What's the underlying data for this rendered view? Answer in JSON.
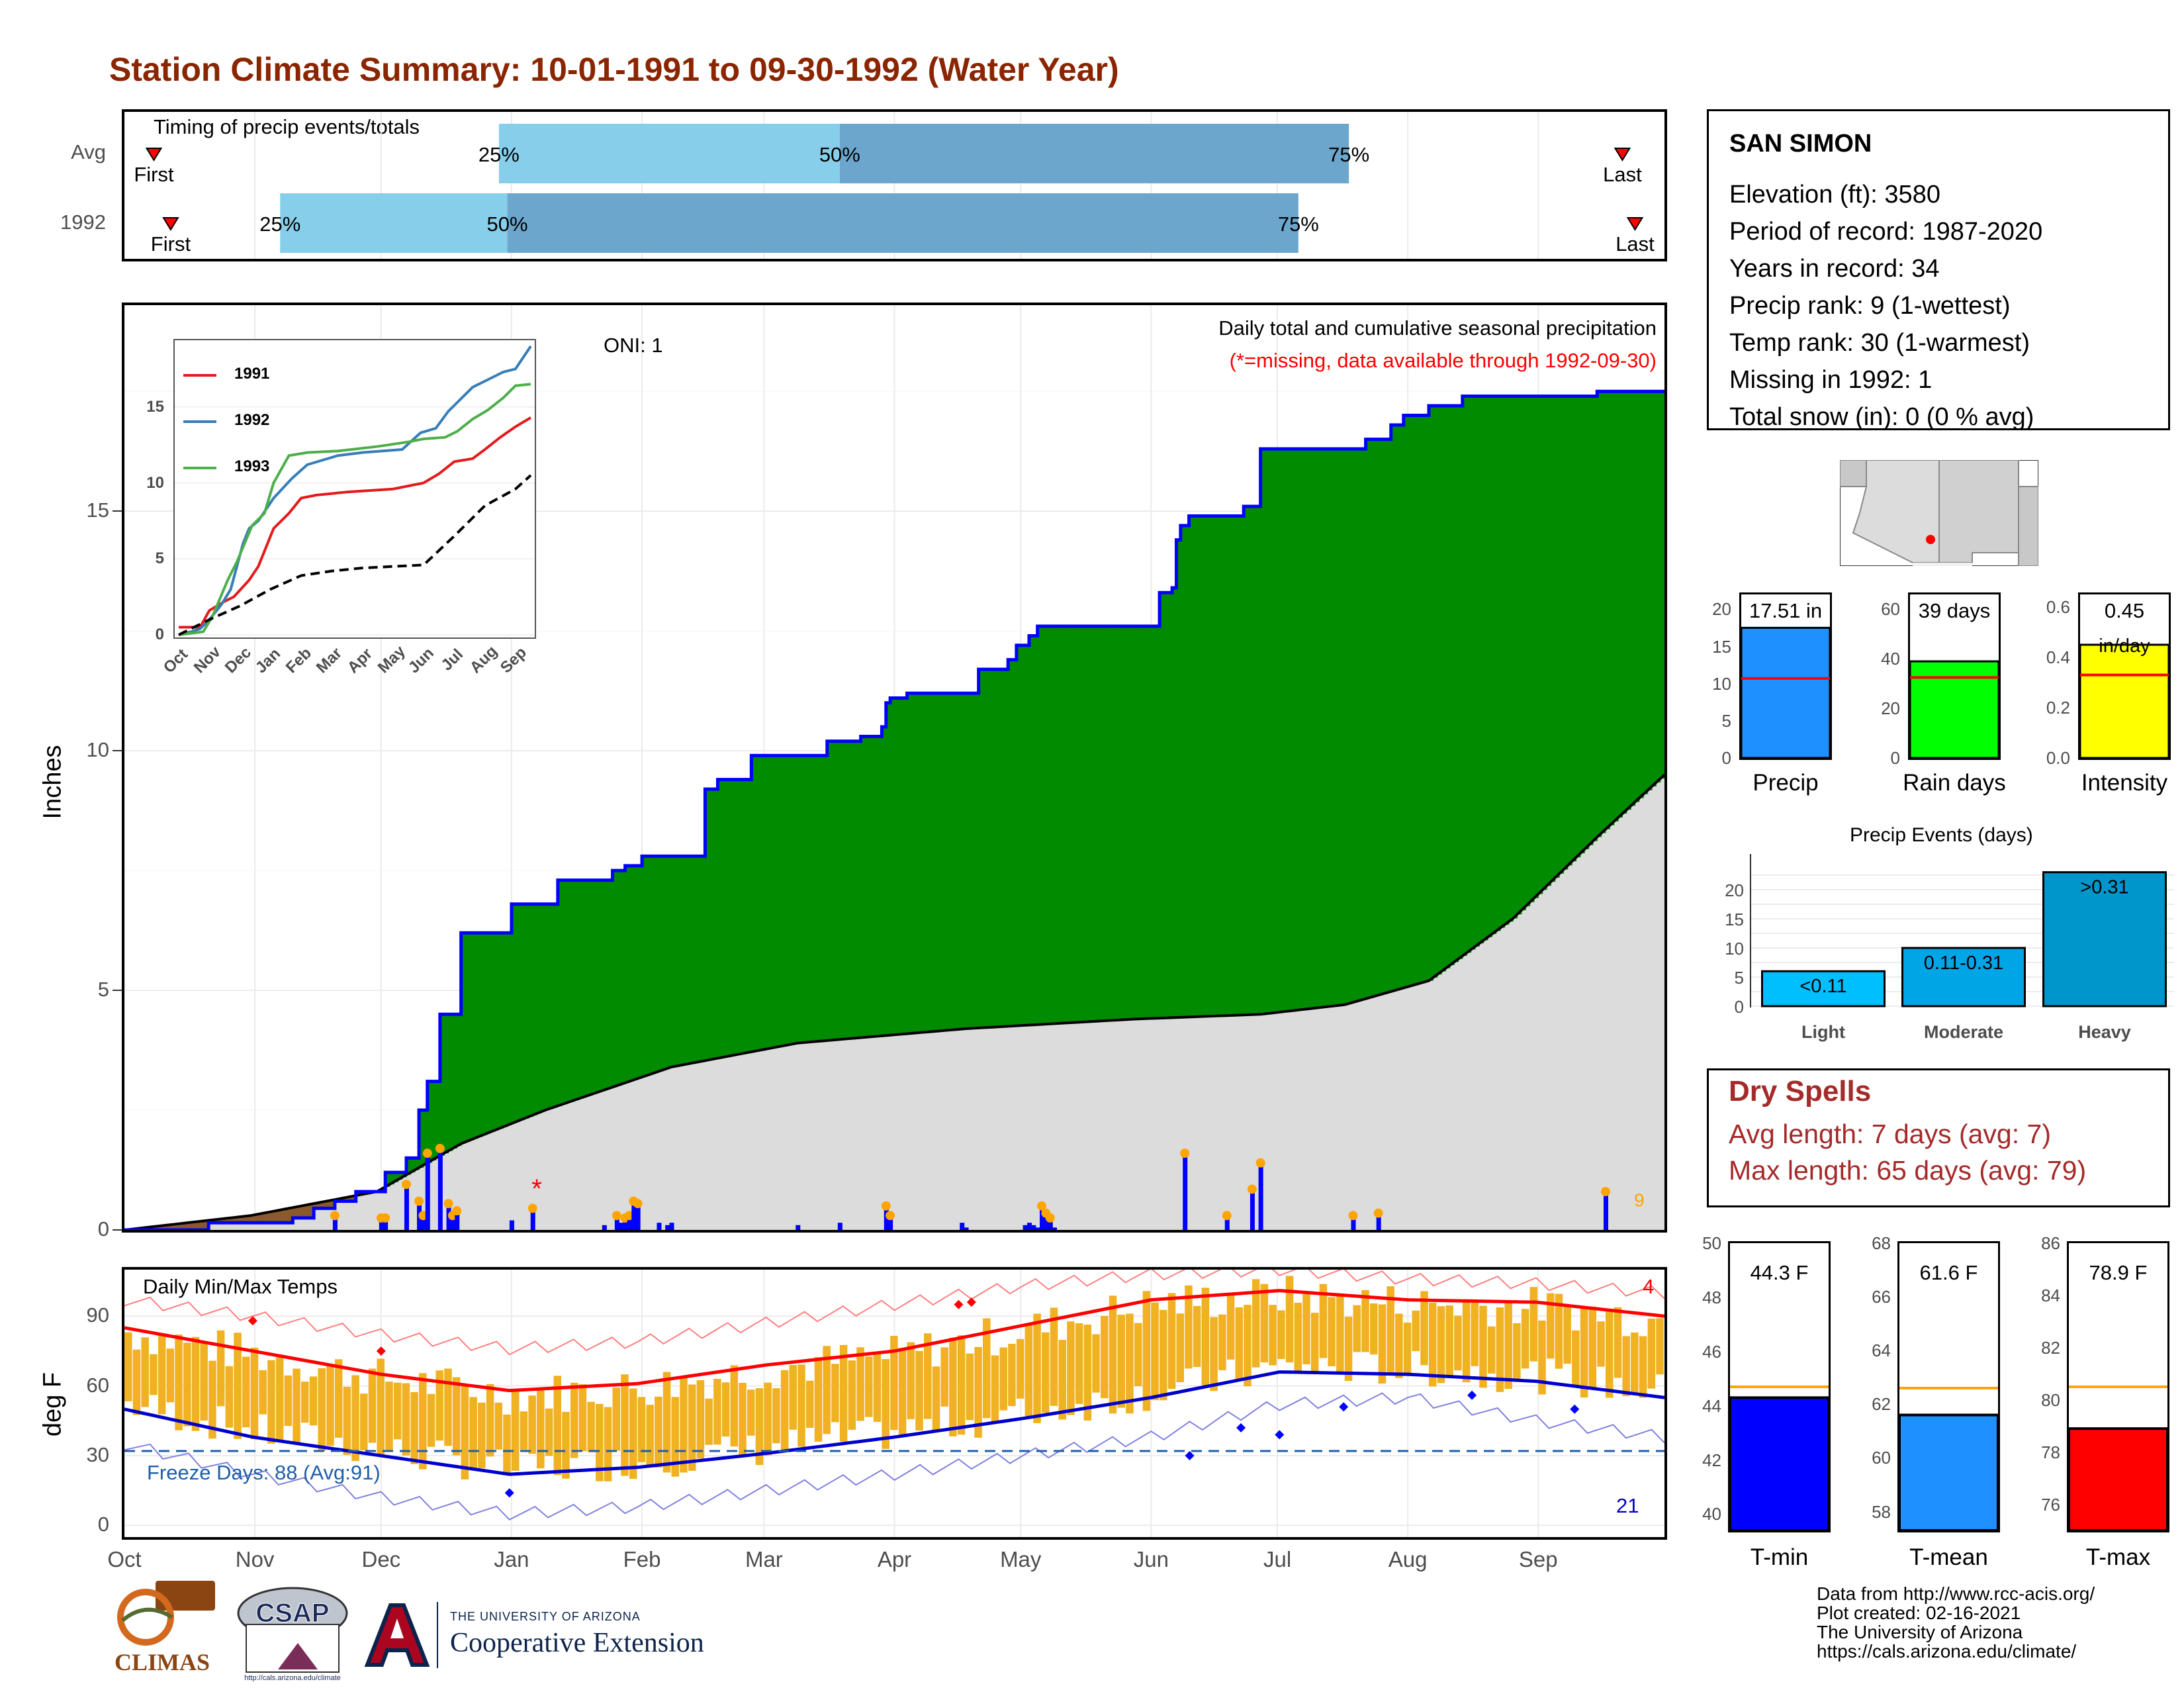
{
  "page": {
    "title": "Station Climate Summary: 10-01-1991 to 09-30-1992 (Water Year)",
    "title_color": "#8B2500"
  },
  "timing": {
    "label": "Timing of precip events/totals",
    "rows": [
      {
        "name": "Avg",
        "first_label": "First",
        "last_label": "Last",
        "first": "Oct 8",
        "p25": "Dec 29",
        "p50": "Mar 19",
        "p75": "Jul 18",
        "last": "Sep 21"
      },
      {
        "name": "1992",
        "first_label": "First",
        "last_label": "Last",
        "first": "Oct 12",
        "p25": "Nov 7",
        "p50": "Dec 31",
        "p75": "Jul 6",
        "last": "Sep 24"
      }
    ],
    "pct_labels": [
      "25%",
      "50%",
      "75%"
    ],
    "colors": {
      "light": "#87CEEB",
      "dark": "#6CA6CD",
      "marker": "#FF0000"
    }
  },
  "precip_panel": {
    "title": "Daily total and cumulative seasonal precipitation",
    "note": "(*=missing, data available through 1992-09-30)",
    "oni": "ONI: 1",
    "ylabel": "Inches",
    "yticks": [
      "0",
      "5",
      "10",
      "15"
    ],
    "missing_marker": "*",
    "end_label": "9",
    "colors": {
      "above": "#008B00",
      "below": "#8B5A2B",
      "normal": "#DCDCDC",
      "line": "#0000FF",
      "bar": "#0000FF",
      "dot": "#FFA500",
      "note": "#FF0000"
    }
  },
  "inset": {
    "series": [
      {
        "name": "1991",
        "color": "#E41A1C"
      },
      {
        "name": "1992",
        "color": "#377EB8"
      },
      {
        "name": "1993",
        "color": "#4DAF4A"
      }
    ],
    "xticks": [
      "Oct",
      "Nov",
      "Dec",
      "Jan",
      "Feb",
      "Mar",
      "Apr",
      "May",
      "Jun",
      "Jul",
      "Aug",
      "Sep"
    ],
    "yticks": [
      "0",
      "5",
      "10",
      "15"
    ]
  },
  "temp_panel": {
    "title": "Daily Min/Max Temps",
    "ylabel": "deg F",
    "yticks": [
      "0",
      "30",
      "60",
      "90"
    ],
    "freeze_label": "Freeze Days: 88 (Avg:91)",
    "record_high_count": "4",
    "record_low_count": "21",
    "colors": {
      "bar": "#F0B122",
      "max": "#FF0000",
      "min": "#0000CD",
      "freeze": "#1E5FA8"
    }
  },
  "months": [
    "Oct",
    "Nov",
    "Dec",
    "Jan",
    "Feb",
    "Mar",
    "Apr",
    "May",
    "Jun",
    "Jul",
    "Aug",
    "Sep"
  ],
  "station": {
    "name": "SAN SIMON",
    "lines": [
      "Elevation (ft): 3580",
      "Period of record: 1987-2020",
      "Years in record: 34",
      "Precip rank: 9 (1-wettest)",
      "Temp rank: 30 (1-warmest)",
      "Missing in 1992: 1",
      "Total snow (in): 0 (0 % avg)"
    ]
  },
  "summary_bars": [
    {
      "label": "Precip",
      "value_label": "17.51 in",
      "value": 17.51,
      "avg": 10.7,
      "ymax": 22,
      "yticks": [
        "0",
        "5",
        "10",
        "15",
        "20"
      ],
      "color": "#1E90FF"
    },
    {
      "label": "Rain days",
      "value_label": "39 days",
      "value": 39,
      "avg": 32.5,
      "ymax": 66,
      "yticks": [
        "0",
        "20",
        "40",
        "60"
      ],
      "color": "#00FF00"
    },
    {
      "label": "Intensity",
      "value_label": "0.45",
      "value_unit": "in/day",
      "value": 0.45,
      "avg": 0.33,
      "ymax": 0.65,
      "yticks": [
        "0.0",
        "0.2",
        "0.4",
        "0.6"
      ],
      "color": "#FFFF00"
    }
  ],
  "precip_events": {
    "title": "Precip Events (days)",
    "yticks": [
      "0",
      "5",
      "10",
      "15",
      "20"
    ],
    "bars": [
      {
        "category": "Light",
        "label": "<0.11",
        "value": 6,
        "color": "#00BFFF"
      },
      {
        "category": "Moderate",
        "label": "0.11-0.31",
        "value": 10,
        "color": "#00A5E6"
      },
      {
        "category": "Heavy",
        "label": ">0.31",
        "value": 23,
        "color": "#0096CC"
      }
    ]
  },
  "dry_spells": {
    "title": "Dry Spells",
    "avg": "Avg length: 7 days (avg: 7)",
    "max": "Max length: 65 days (avg: 79)",
    "color": "#A52A2A"
  },
  "temp_bars": [
    {
      "label": "T-min",
      "value_label": "44.3 F",
      "value": 44.3,
      "avg": 44.7,
      "ymin": 39.4,
      "ymax": 50,
      "yticks": [
        "40",
        "42",
        "44",
        "46",
        "48",
        "50"
      ],
      "color": "#0000FF"
    },
    {
      "label": "T-mean",
      "value_label": "61.6 F",
      "value": 61.6,
      "avg": 62.6,
      "ymin": 57.3,
      "ymax": 68,
      "yticks": [
        "58",
        "60",
        "62",
        "64",
        "66",
        "68"
      ],
      "color": "#1E90FF"
    },
    {
      "label": "T-max",
      "value_label": "78.9 F",
      "value": 78.9,
      "avg": 80.5,
      "ymin": 75.0,
      "ymax": 86,
      "yticks": [
        "76",
        "78",
        "80",
        "82",
        "84",
        "86"
      ],
      "color": "#FF0000"
    }
  ],
  "avg_line_colors": {
    "summary": "#FF0000",
    "temp": "#FFA500"
  },
  "logos": {
    "climas": "CLIMAS",
    "csap": "CSAP",
    "csap_url": "http://cals.arizona.edu/climate",
    "ua_line1": "THE UNIVERSITY OF ARIZONA",
    "ua_line2": "Cooperative Extension",
    "colors": {
      "ua_red": "#AB0520",
      "ua_blue": "#0C234B",
      "climas_brown": "#8B4513"
    }
  },
  "footer": [
    "Data from http://www.rcc-acis.org/",
    "Plot created: 02-16-2021",
    "The University of Arizona",
    "https://cals.arizona.edu/climate/"
  ],
  "chart_data": [
    {
      "type": "area",
      "title": "Daily total and cumulative seasonal precipitation",
      "xlabel": "",
      "ylabel": "Inches",
      "ylim": [
        0,
        19.3
      ],
      "x_unit": "day of water year (0 = Oct 1)",
      "series": [
        {
          "name": "cumulative 1992",
          "x": [
            0,
            20,
            40,
            45,
            50,
            55,
            62,
            67,
            70,
            72,
            75,
            80,
            92,
            103,
            116,
            119,
            123,
            138,
            141,
            149,
            167,
            175,
            180,
            181,
            182,
            186,
            203,
            210,
            212,
            215,
            217,
            246,
            249,
            250,
            251,
            253,
            266,
            270,
            295,
            301,
            304,
            310,
            318,
            350,
            374
          ],
          "y": [
            0,
            0.15,
            0.25,
            0.45,
            0.6,
            0.8,
            1.2,
            1.5,
            2.5,
            3.1,
            4.5,
            6.2,
            6.8,
            7.3,
            7.5,
            7.6,
            7.8,
            9.2,
            9.4,
            9.9,
            10.2,
            10.3,
            10.5,
            11.0,
            11.1,
            11.2,
            11.7,
            11.9,
            12.2,
            12.4,
            12.6,
            13.3,
            13.4,
            14.4,
            14.7,
            14.9,
            15.1,
            16.3,
            16.5,
            16.8,
            17.0,
            17.2,
            17.4,
            17.5,
            17.51
          ]
        },
        {
          "name": "average cumulative",
          "x": [
            0,
            30,
            60,
            80,
            100,
            130,
            160,
            200,
            240,
            270,
            290,
            310,
            330,
            350,
            366
          ],
          "y": [
            0,
            0.3,
            0.8,
            1.8,
            2.5,
            3.4,
            3.9,
            4.2,
            4.4,
            4.5,
            4.7,
            5.2,
            6.5,
            8.2,
            9.5
          ]
        }
      ],
      "daily_bars": {
        "x": [
          50,
          61,
          62,
          67,
          70,
          71,
          72,
          75,
          77,
          78,
          79,
          92,
          97,
          114,
          117,
          118,
          119,
          120,
          121,
          122,
          127,
          129,
          130,
          160,
          170,
          181,
          182,
          199,
          200,
          214,
          215,
          216,
          217,
          218,
          219,
          220,
          221,
          252,
          262,
          268,
          270,
          292,
          298,
          352
        ],
        "y": [
          0.3,
          0.25,
          0.25,
          0.95,
          0.6,
          0.3,
          1.6,
          1.7,
          0.55,
          0.3,
          0.4,
          0.2,
          0.45,
          0.1,
          0.3,
          0.15,
          0.25,
          0.3,
          0.6,
          0.55,
          0.15,
          0.1,
          0.15,
          0.1,
          0.15,
          0.5,
          0.3,
          0.15,
          0.05,
          0.1,
          0.15,
          0.1,
          0.05,
          0.5,
          0.35,
          0.25,
          0.05,
          1.6,
          0.3,
          0.85,
          1.4,
          0.3,
          0.35,
          0.8
        ]
      },
      "missing_day": [
        98
      ]
    },
    {
      "type": "line",
      "title": "",
      "xlabel": "",
      "ylabel": "",
      "ylim": [
        0,
        19
      ],
      "x_unit": "month index (0 = Oct 1)",
      "series": [
        {
          "name": "1991",
          "x": [
            0,
            0.7,
            1.0,
            1.5,
            1.8,
            2.3,
            2.6,
            3.1,
            3.6,
            4.0,
            4.5,
            5.5,
            7.0,
            8.0,
            8.5,
            9.0,
            9.6,
            10.0,
            10.5,
            11.0,
            11.5
          ],
          "y": [
            0.5,
            0.5,
            1.6,
            2.2,
            2.5,
            3.6,
            4.5,
            7.0,
            8.0,
            9.0,
            9.2,
            9.4,
            9.6,
            10.0,
            10.6,
            11.4,
            11.6,
            12.2,
            13.0,
            13.7,
            14.3
          ]
        },
        {
          "name": "1992",
          "x": [
            0,
            0.4,
            0.7,
            1.0,
            1.4,
            1.7,
            2.1,
            2.3,
            2.6,
            3.1,
            3.7,
            4.2,
            5.2,
            6.0,
            7.3,
            7.9,
            8.4,
            8.8,
            9.0,
            9.6,
            10.1,
            10.6,
            11.0,
            11.5
          ],
          "y": [
            0,
            0.2,
            0.4,
            1.0,
            2.0,
            3.0,
            6.0,
            7.0,
            7.5,
            9.0,
            10.3,
            11.2,
            11.8,
            12.0,
            12.2,
            13.3,
            13.6,
            14.7,
            15.1,
            16.3,
            16.8,
            17.3,
            17.5,
            19.0
          ]
        },
        {
          "name": "1993",
          "x": [
            0,
            0.8,
            1.1,
            1.6,
            1.9,
            2.4,
            2.8,
            3.1,
            3.6,
            4.2,
            5.2,
            6.5,
            7.5,
            8.0,
            8.7,
            9.1,
            9.6,
            10.1,
            10.6,
            11.0,
            11.5
          ],
          "y": [
            0,
            0.2,
            1.2,
            3.6,
            4.8,
            7.2,
            8.0,
            10.0,
            11.8,
            12.0,
            12.1,
            12.4,
            12.7,
            12.9,
            13.0,
            13.4,
            14.2,
            14.8,
            15.6,
            16.4,
            16.5
          ]
        },
        {
          "name": "average",
          "x": [
            0,
            1,
            2,
            3,
            4,
            5,
            6,
            7,
            8,
            9,
            10,
            11,
            11.5
          ],
          "y": [
            0,
            1.0,
            1.9,
            3.0,
            3.9,
            4.2,
            4.4,
            4.5,
            4.6,
            6.5,
            8.5,
            9.6,
            10.5
          ]
        }
      ]
    },
    {
      "type": "bar",
      "title": "",
      "categories": [
        "Precip",
        "Rain days",
        "Intensity"
      ],
      "values": [
        17.51,
        39,
        0.45
      ]
    },
    {
      "type": "bar",
      "title": "Precip Events (days)",
      "categories": [
        "Light",
        "Moderate",
        "Heavy"
      ],
      "values": [
        6,
        10,
        23
      ]
    },
    {
      "type": "bar",
      "title": "",
      "categories": [
        "T-min",
        "T-mean",
        "T-max"
      ],
      "values": [
        44.3,
        61.6,
        78.9
      ]
    },
    {
      "type": "line",
      "title": "Daily Min/Max Temps",
      "ylabel": "deg F",
      "ylim": [
        -5,
        110
      ],
      "x_unit": "month index (0 = Oct 1)",
      "series": [
        {
          "name": "avg max",
          "x": [
            0,
            1,
            2,
            3,
            4,
            5,
            6,
            7,
            8,
            9,
            10,
            11,
            12
          ],
          "y": [
            85,
            75,
            65,
            58,
            61,
            69,
            75,
            86,
            97,
            101,
            97,
            96,
            90
          ]
        },
        {
          "name": "avg min",
          "x": [
            0,
            1,
            2,
            3,
            4,
            5,
            6,
            7,
            8,
            9,
            10,
            11,
            12
          ],
          "y": [
            50,
            38,
            30,
            22,
            25,
            31,
            38,
            46,
            55,
            66,
            65,
            62,
            55
          ]
        },
        {
          "name": "record max",
          "x": [
            0,
            1,
            2,
            3,
            4,
            5,
            6,
            7,
            8,
            9,
            10,
            11,
            12
          ],
          "y": [
            97,
            90,
            82,
            76,
            79,
            87,
            95,
            103,
            108,
            110,
            106,
            104,
            100
          ]
        },
        {
          "name": "record min",
          "x": [
            0,
            1,
            2,
            3,
            4,
            5,
            6,
            7,
            8,
            9,
            10,
            11,
            12
          ],
          "y": [
            35,
            22,
            12,
            5,
            8,
            15,
            22,
            30,
            38,
            52,
            55,
            45,
            38
          ]
        },
        {
          "name": "freeze",
          "x": [
            0,
            12
          ],
          "y": [
            32,
            32
          ]
        }
      ]
    }
  ]
}
